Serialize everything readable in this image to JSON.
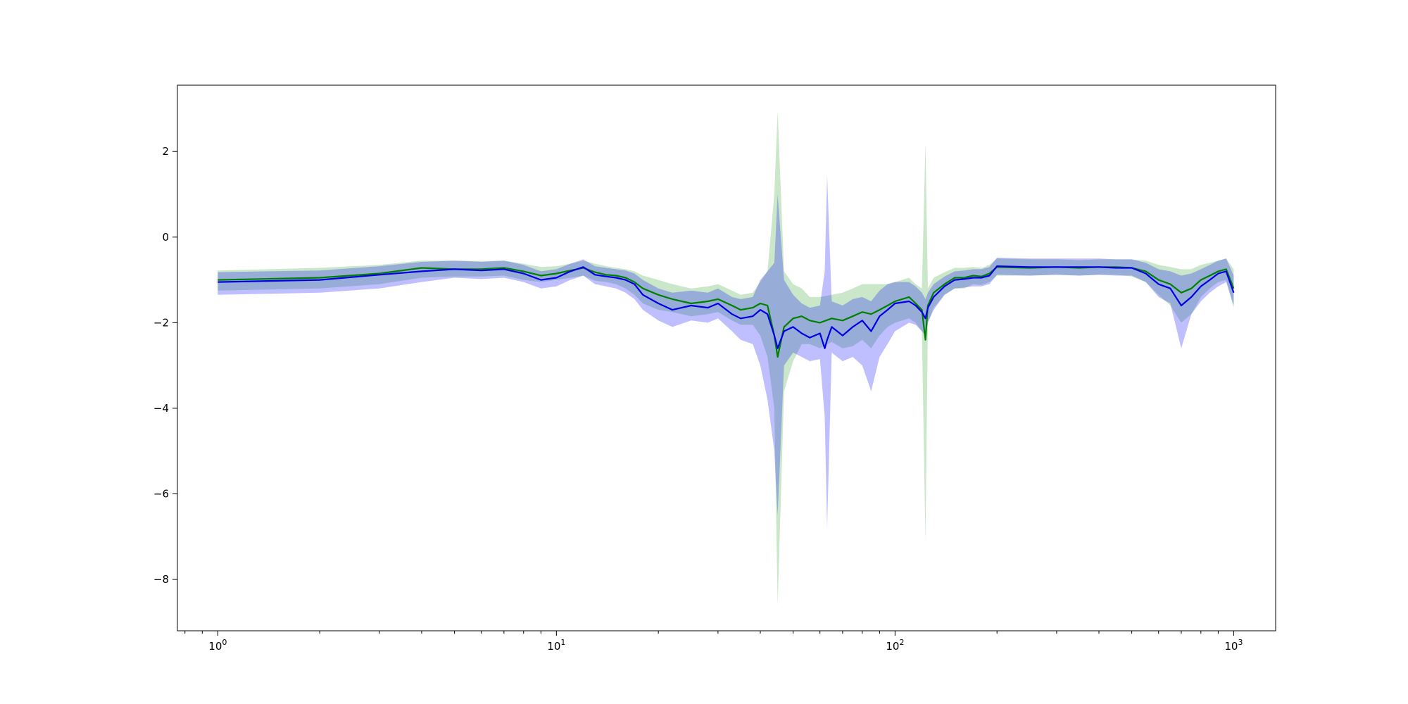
{
  "chart_data": {
    "type": "line",
    "title": "",
    "xlabel": "",
    "ylabel": "",
    "xscale": "log",
    "xlim": [
      0.76,
      1330
    ],
    "ylim": [
      -9.2,
      3.55
    ],
    "grid": false,
    "legend": "none",
    "x_ticks": [
      {
        "value": 1,
        "base": "10",
        "exp": "0"
      },
      {
        "value": 10,
        "base": "10",
        "exp": "1"
      },
      {
        "value": 100,
        "base": "10",
        "exp": "2"
      },
      {
        "value": 1000,
        "base": "10",
        "exp": "3"
      }
    ],
    "y_ticks": [
      {
        "value": 2,
        "label": "2"
      },
      {
        "value": 0,
        "label": "0"
      },
      {
        "value": -2,
        "label": "−2"
      },
      {
        "value": -4,
        "label": "−4"
      },
      {
        "value": -6,
        "label": "−6"
      },
      {
        "value": -8,
        "label": "−8"
      }
    ],
    "series": [
      {
        "color": "#008000",
        "band_color": "#2ca02c",
        "x": [
          1,
          2,
          3,
          4,
          5,
          6,
          7,
          8,
          9,
          10,
          11,
          12,
          13,
          14,
          15,
          16,
          17,
          18,
          20,
          22,
          25,
          28,
          30,
          33,
          35,
          38,
          40,
          42,
          44,
          45,
          47,
          50,
          53,
          56,
          60,
          65,
          70,
          75,
          80,
          85,
          90,
          95,
          100,
          110,
          115,
          120,
          123,
          125,
          130,
          140,
          150,
          160,
          170,
          180,
          190,
          200,
          250,
          300,
          350,
          400,
          450,
          500,
          550,
          600,
          650,
          700,
          750,
          800,
          850,
          900,
          950,
          1000
        ],
        "y": [
          -1.0,
          -0.95,
          -0.85,
          -0.72,
          -0.75,
          -0.75,
          -0.72,
          -0.8,
          -0.9,
          -0.85,
          -0.78,
          -0.72,
          -0.82,
          -0.88,
          -0.9,
          -0.95,
          -1.05,
          -1.2,
          -1.35,
          -1.45,
          -1.55,
          -1.5,
          -1.45,
          -1.6,
          -1.7,
          -1.65,
          -1.55,
          -1.6,
          -2.3,
          -2.8,
          -2.1,
          -1.9,
          -1.85,
          -1.95,
          -2.0,
          -1.9,
          -1.95,
          -1.85,
          -1.75,
          -1.8,
          -1.7,
          -1.6,
          -1.5,
          -1.4,
          -1.55,
          -1.7,
          -2.4,
          -1.6,
          -1.3,
          -1.1,
          -0.95,
          -0.95,
          -0.9,
          -0.92,
          -0.85,
          -0.7,
          -0.72,
          -0.7,
          -0.72,
          -0.7,
          -0.7,
          -0.72,
          -0.8,
          -1.0,
          -1.1,
          -1.3,
          -1.2,
          -1.0,
          -0.9,
          -0.8,
          -0.75,
          -1.2
        ],
        "lower": [
          -1.25,
          -1.2,
          -1.1,
          -0.95,
          -0.92,
          -0.92,
          -0.9,
          -1.0,
          -1.05,
          -1.0,
          -0.95,
          -0.9,
          -1.02,
          -1.05,
          -1.1,
          -1.2,
          -1.35,
          -1.55,
          -1.7,
          -1.75,
          -1.85,
          -1.8,
          -1.75,
          -1.95,
          -2.05,
          -2.05,
          -2.3,
          -2.8,
          -4.0,
          -8.6,
          -3.6,
          -2.9,
          -2.5,
          -2.5,
          -2.6,
          -2.45,
          -2.6,
          -2.55,
          -2.4,
          -2.6,
          -2.3,
          -2.1,
          -2.0,
          -1.9,
          -2.0,
          -2.2,
          -7.1,
          -2.0,
          -1.65,
          -1.35,
          -1.2,
          -1.2,
          -1.1,
          -1.12,
          -1.05,
          -0.9,
          -0.9,
          -0.88,
          -0.9,
          -0.88,
          -0.88,
          -0.92,
          -1.05,
          -1.35,
          -1.6,
          -2.0,
          -1.8,
          -1.4,
          -1.2,
          -1.05,
          -1.0,
          -1.65
        ],
        "upper": [
          -0.78,
          -0.72,
          -0.65,
          -0.55,
          -0.55,
          -0.56,
          -0.55,
          -0.62,
          -0.7,
          -0.68,
          -0.62,
          -0.55,
          -0.62,
          -0.68,
          -0.72,
          -0.75,
          -0.8,
          -0.9,
          -1.0,
          -1.1,
          -1.2,
          -1.15,
          -1.1,
          -1.25,
          -1.35,
          -1.3,
          -1.05,
          -0.8,
          1.0,
          2.95,
          -0.8,
          -1.1,
          -1.2,
          -1.4,
          -1.4,
          -1.35,
          -1.3,
          -1.2,
          -1.1,
          -1.1,
          -1.1,
          -1.1,
          -1.05,
          -0.95,
          -1.1,
          -1.2,
          2.2,
          -1.2,
          -0.95,
          -0.82,
          -0.72,
          -0.72,
          -0.7,
          -0.72,
          -0.65,
          -0.5,
          -0.52,
          -0.52,
          -0.54,
          -0.52,
          -0.52,
          -0.52,
          -0.55,
          -0.65,
          -0.7,
          -0.75,
          -0.75,
          -0.65,
          -0.6,
          -0.55,
          -0.5,
          -0.75
        ]
      },
      {
        "color": "#0000e6",
        "band_color": "#0000ff",
        "x": [
          1,
          2,
          3,
          4,
          5,
          6,
          7,
          8,
          9,
          10,
          11,
          12,
          13,
          14,
          15,
          16,
          17,
          18,
          20,
          22,
          25,
          28,
          30,
          33,
          35,
          38,
          40,
          42,
          44,
          45,
          47,
          50,
          53,
          56,
          60,
          62,
          63,
          65,
          70,
          75,
          80,
          85,
          90,
          95,
          100,
          110,
          115,
          120,
          123,
          125,
          130,
          140,
          150,
          160,
          170,
          180,
          190,
          200,
          250,
          300,
          350,
          400,
          450,
          500,
          550,
          600,
          650,
          700,
          750,
          800,
          850,
          900,
          950,
          1000
        ],
        "y": [
          -1.05,
          -1.0,
          -0.88,
          -0.8,
          -0.75,
          -0.78,
          -0.75,
          -0.85,
          -1.0,
          -0.95,
          -0.8,
          -0.7,
          -0.88,
          -0.92,
          -0.95,
          -1.0,
          -1.1,
          -1.35,
          -1.55,
          -1.7,
          -1.6,
          -1.65,
          -1.55,
          -1.8,
          -1.9,
          -1.85,
          -1.7,
          -1.8,
          -2.3,
          -2.6,
          -2.2,
          -2.1,
          -2.25,
          -2.35,
          -2.25,
          -2.6,
          -2.4,
          -2.1,
          -2.3,
          -2.1,
          -1.95,
          -2.2,
          -1.85,
          -1.7,
          -1.55,
          -1.5,
          -1.6,
          -1.75,
          -1.9,
          -1.65,
          -1.4,
          -1.15,
          -1.0,
          -0.98,
          -0.95,
          -0.95,
          -0.9,
          -0.68,
          -0.7,
          -0.7,
          -0.7,
          -0.7,
          -0.72,
          -0.72,
          -0.85,
          -1.1,
          -1.2,
          -1.6,
          -1.4,
          -1.15,
          -1.0,
          -0.85,
          -0.8,
          -1.3
        ],
        "lower": [
          -1.35,
          -1.3,
          -1.2,
          -1.05,
          -0.95,
          -0.98,
          -0.95,
          -1.05,
          -1.2,
          -1.15,
          -1.0,
          -0.9,
          -1.1,
          -1.15,
          -1.2,
          -1.3,
          -1.45,
          -1.7,
          -1.95,
          -2.1,
          -1.95,
          -2.0,
          -1.9,
          -2.2,
          -2.4,
          -2.5,
          -3.0,
          -3.8,
          -5.0,
          -6.5,
          -3.0,
          -2.7,
          -2.8,
          -2.9,
          -2.85,
          -4.2,
          -6.8,
          -2.7,
          -2.9,
          -2.8,
          -3.0,
          -3.6,
          -2.8,
          -2.5,
          -2.2,
          -2.0,
          -2.05,
          -2.2,
          -2.3,
          -2.0,
          -1.7,
          -1.35,
          -1.2,
          -1.18,
          -1.15,
          -1.15,
          -1.1,
          -0.88,
          -0.9,
          -0.88,
          -0.9,
          -0.88,
          -0.9,
          -0.9,
          -1.05,
          -1.4,
          -1.55,
          -2.6,
          -1.8,
          -1.5,
          -1.3,
          -1.15,
          -1.05,
          -1.6
        ],
        "upper": [
          -0.82,
          -0.78,
          -0.68,
          -0.58,
          -0.55,
          -0.58,
          -0.55,
          -0.65,
          -0.8,
          -0.75,
          -0.62,
          -0.52,
          -0.68,
          -0.72,
          -0.75,
          -0.78,
          -0.85,
          -1.0,
          -1.2,
          -1.3,
          -1.25,
          -1.3,
          -1.2,
          -1.4,
          -1.45,
          -1.4,
          -1.0,
          -0.8,
          -0.6,
          1.0,
          -1.0,
          -1.35,
          -1.55,
          -1.65,
          -1.6,
          -0.8,
          1.45,
          -1.5,
          -1.6,
          -1.45,
          -1.4,
          -1.5,
          -1.25,
          -1.1,
          -1.05,
          -1.05,
          -1.15,
          -1.3,
          -1.45,
          -1.3,
          -1.1,
          -0.92,
          -0.8,
          -0.78,
          -0.75,
          -0.75,
          -0.7,
          -0.48,
          -0.5,
          -0.5,
          -0.5,
          -0.5,
          -0.52,
          -0.52,
          -0.6,
          -0.75,
          -0.8,
          -0.9,
          -0.85,
          -0.75,
          -0.65,
          -0.55,
          -0.5,
          -0.9
        ]
      }
    ]
  }
}
